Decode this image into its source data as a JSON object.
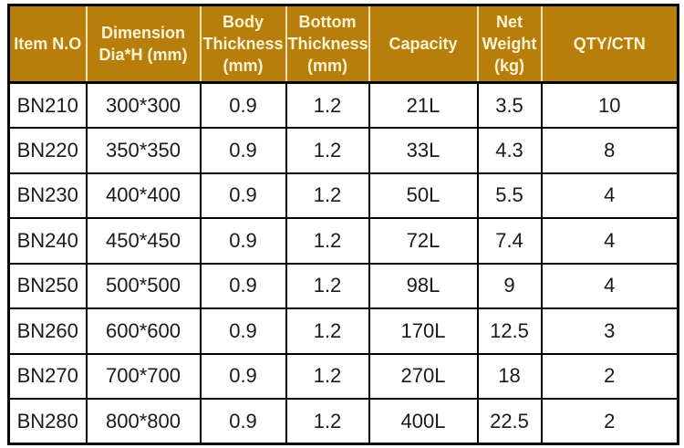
{
  "table": {
    "name": "product-specification-table",
    "columns": [
      {
        "label": "Item N.O"
      },
      {
        "label": "Dimension\nDia*H (mm)"
      },
      {
        "label": "Body\nThickness\n(mm)"
      },
      {
        "label": "Bottom\nThickness\n(mm)"
      },
      {
        "label": "Capacity"
      },
      {
        "label": "Net\nWeight\n(kg)"
      },
      {
        "label": "QTY/CTN"
      }
    ],
    "rows": [
      [
        "BN210",
        "300*300",
        "0.9",
        "1.2",
        "21L",
        "3.5",
        "10"
      ],
      [
        "BN220",
        "350*350",
        "0.9",
        "1.2",
        "33L",
        "4.3",
        "8"
      ],
      [
        "BN230",
        "400*400",
        "0.9",
        "1.2",
        "50L",
        "5.5",
        "4"
      ],
      [
        "BN240",
        "450*450",
        "0.9",
        "1.2",
        "72L",
        "7.4",
        "4"
      ],
      [
        "BN250",
        "500*500",
        "0.9",
        "1.2",
        "98L",
        "9",
        "4"
      ],
      [
        "BN260",
        "600*600",
        "0.9",
        "1.2",
        "170L",
        "12.5",
        "3"
      ],
      [
        "BN270",
        "700*700",
        "0.9",
        "1.2",
        "270L",
        "18",
        "2"
      ],
      [
        "BN280",
        "800*800",
        "0.9",
        "1.2",
        "400L",
        "22.5",
        "2"
      ]
    ],
    "colors": {
      "header_bg": "#B87E0C",
      "header_text": "#FCF3D2",
      "header_divider": "#F2E4B8",
      "body_text": "#1A1A1A",
      "border": "#000000"
    }
  }
}
